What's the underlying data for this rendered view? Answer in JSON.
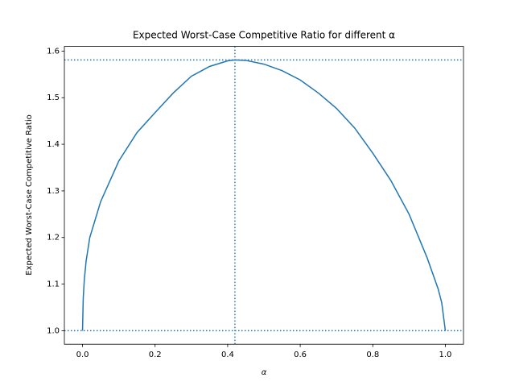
{
  "chart_data": {
    "type": "line",
    "title": "Expected Worst-Case Competitive Ratio for different α",
    "x_label": "α",
    "y_label": "Expected Worst-Case Competitive Ratio",
    "series": [
      {
        "color": "#1f77b4",
        "x": [
          0,
          0.002,
          0.005,
          0.01,
          0.02,
          0.05,
          0.1,
          0.15,
          0.2,
          0.25,
          0.3,
          0.35,
          0.4,
          0.42,
          0.45,
          0.5,
          0.55,
          0.6,
          0.65,
          0.7,
          0.75,
          0.8,
          0.85,
          0.9,
          0.95,
          0.98,
          0.99,
          1
        ],
        "values": [
          1,
          1.07,
          1.11,
          1.15,
          1.2,
          1.277,
          1.364,
          1.425,
          1.468,
          1.51,
          1.546,
          1.567,
          1.579,
          1.581,
          1.58,
          1.572,
          1.558,
          1.538,
          1.51,
          1.477,
          1.435,
          1.381,
          1.322,
          1.25,
          1.156,
          1.09,
          1.06,
          1
        ]
      }
    ],
    "reference_lines": {
      "y": [
        1.0,
        1.581
      ],
      "x": [
        0.42
      ],
      "color": "#1f77b4"
    },
    "xlim": [
      -0.05,
      1.05
    ],
    "ylim": [
      0.971,
      1.61
    ],
    "xticks": [
      {
        "value": 0,
        "label": "0.0"
      },
      {
        "value": 0.2,
        "label": "0.2"
      },
      {
        "value": 0.4,
        "label": "0.4"
      },
      {
        "value": 0.6,
        "label": "0.6"
      },
      {
        "value": 0.8,
        "label": "0.8"
      },
      {
        "value": 1,
        "label": "1.0"
      }
    ],
    "yticks": [
      {
        "value": 1,
        "label": "1.0"
      },
      {
        "value": 1.1,
        "label": "1.1"
      },
      {
        "value": 1.2,
        "label": "1.2"
      },
      {
        "value": 1.3,
        "label": "1.3"
      },
      {
        "value": 1.4,
        "label": "1.4"
      },
      {
        "value": 1.5,
        "label": "1.5"
      },
      {
        "value": 1.6,
        "label": "1.6"
      }
    ]
  }
}
